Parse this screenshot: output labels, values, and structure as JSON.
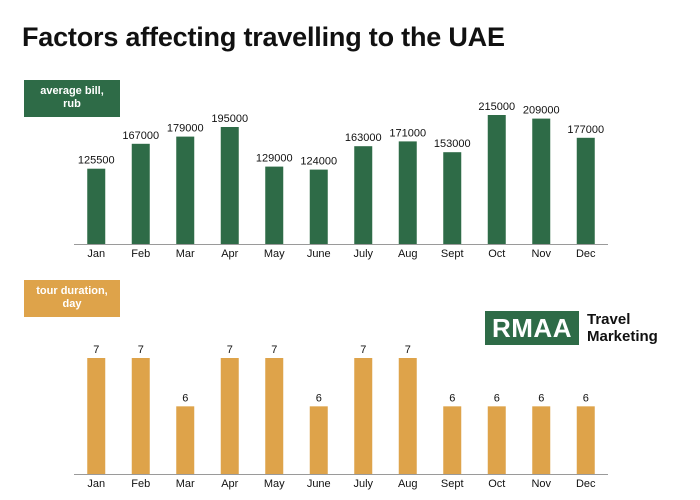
{
  "title": "Factors affecting travelling to the UAE",
  "charts": {
    "bill_label": [
      "average bill,",
      "rub"
    ],
    "duration_label": [
      "tour duration,",
      "day"
    ]
  },
  "logo": {
    "mark": "RMAA",
    "line1": "Travel",
    "line2": "Marketing"
  },
  "colors": {
    "green": "#2e6b47",
    "orange": "#dea34a",
    "axis": "#9a9a9a"
  },
  "chart_data": [
    {
      "type": "bar",
      "title": "average bill, rub",
      "categories": [
        "Jan",
        "Feb",
        "Mar",
        "Apr",
        "May",
        "June",
        "July",
        "Aug",
        "Sept",
        "Oct",
        "Nov",
        "Dec"
      ],
      "values": [
        125500,
        167000,
        179000,
        195000,
        129000,
        124000,
        163000,
        171000,
        153000,
        215000,
        209000,
        177000
      ],
      "ylim": [
        0,
        215000
      ],
      "grid": false,
      "color": "#2e6b47"
    },
    {
      "type": "bar",
      "title": "tour duration, day",
      "categories": [
        "Jan",
        "Feb",
        "Mar",
        "Apr",
        "May",
        "June",
        "July",
        "Aug",
        "Sept",
        "Oct",
        "Nov",
        "Dec"
      ],
      "values": [
        7,
        7,
        6,
        7,
        7,
        6,
        7,
        7,
        6,
        6,
        6,
        6
      ],
      "ylim": [
        4.6,
        7
      ],
      "grid": false,
      "color": "#dea34a"
    }
  ]
}
